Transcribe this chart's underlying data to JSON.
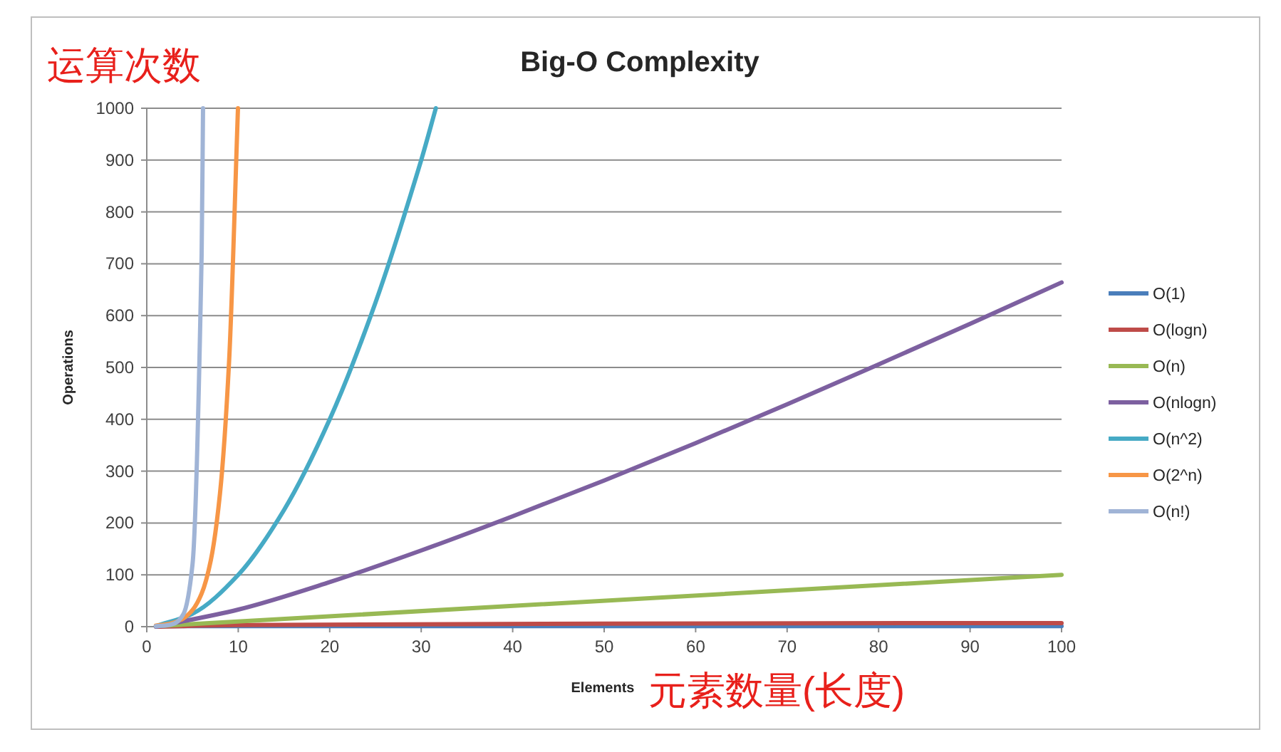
{
  "chart_data": {
    "type": "line",
    "title": "Big-O Complexity",
    "xlabel": "Elements",
    "ylabel": "Operations",
    "annotations": [
      "运算次数",
      "元素数量(长度)"
    ],
    "xlim": [
      0,
      100
    ],
    "ylim": [
      0,
      1000
    ],
    "xticks": [
      0,
      10,
      20,
      30,
      40,
      50,
      60,
      70,
      80,
      90,
      100
    ],
    "yticks": [
      0,
      100,
      200,
      300,
      400,
      500,
      600,
      700,
      800,
      900,
      1000
    ],
    "grid": "y",
    "legend": "right",
    "series": [
      {
        "name": "O(1)",
        "color": "#4a7ebb",
        "x": [
          1,
          50,
          100
        ],
        "values": [
          1,
          1,
          1
        ]
      },
      {
        "name": "O(logn)",
        "color": "#be4b48",
        "x": [
          1,
          10,
          50,
          100
        ],
        "values": [
          0,
          3,
          6,
          7
        ]
      },
      {
        "name": "O(n)",
        "color": "#98b954",
        "x": [
          1,
          100
        ],
        "values": [
          1,
          100
        ]
      },
      {
        "name": "O(nlogn)",
        "color": "#7d60a0",
        "x": [
          1,
          10,
          20,
          30,
          40,
          50,
          60,
          70,
          80,
          90,
          100
        ],
        "values": [
          0,
          33,
          86,
          147,
          213,
          282,
          354,
          429,
          506,
          584,
          664
        ]
      },
      {
        "name": "O(n^2)",
        "color": "#46aac5",
        "x": [
          1,
          5,
          10,
          15,
          20,
          25,
          30,
          31.6
        ],
        "values": [
          1,
          25,
          100,
          225,
          400,
          625,
          900,
          1000
        ]
      },
      {
        "name": "O(2^n)",
        "color": "#f79646",
        "x": [
          1,
          2,
          3,
          4,
          5,
          6,
          7,
          8,
          9,
          9.97
        ],
        "values": [
          2,
          4,
          8,
          16,
          32,
          64,
          128,
          256,
          512,
          1000
        ]
      },
      {
        "name": "O(n!)",
        "color": "#a0b4d6",
        "x": [
          1,
          2,
          3,
          4,
          5,
          6,
          6.15
        ],
        "values": [
          1,
          2,
          6,
          24,
          120,
          720,
          1000
        ]
      }
    ]
  }
}
